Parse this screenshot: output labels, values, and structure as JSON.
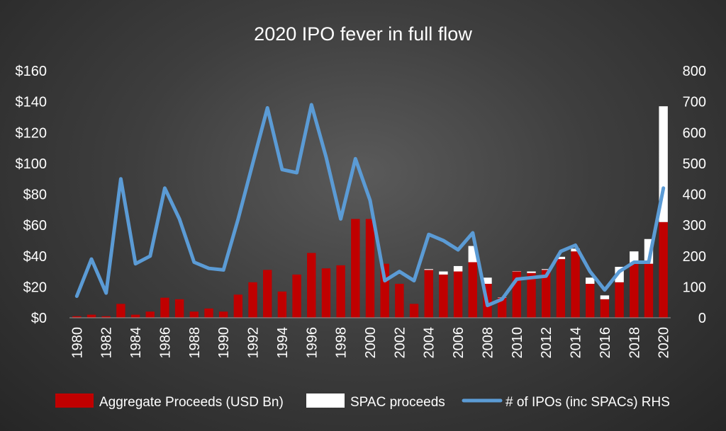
{
  "chart_data": {
    "type": "bar",
    "title": "2020 IPO fever in full flow",
    "years": [
      1980,
      1981,
      1982,
      1983,
      1984,
      1985,
      1986,
      1987,
      1988,
      1989,
      1990,
      1991,
      1992,
      1993,
      1994,
      1995,
      1996,
      1997,
      1998,
      1999,
      2000,
      2001,
      2002,
      2003,
      2004,
      2005,
      2006,
      2007,
      2008,
      2009,
      2010,
      2011,
      2012,
      2013,
      2014,
      2015,
      2016,
      2017,
      2018,
      2019,
      2020
    ],
    "x_tick_labels": [
      "1980",
      "1982",
      "1984",
      "1986",
      "1988",
      "1990",
      "1992",
      "1994",
      "1996",
      "1998",
      "2000",
      "2002",
      "2004",
      "2006",
      "2008",
      "2010",
      "2012",
      "2014",
      "2016",
      "2018",
      "2020"
    ],
    "y_left": {
      "ticks": [
        "$0",
        "$20",
        "$40",
        "$60",
        "$80",
        "$100",
        "$120",
        "$140",
        "$160"
      ],
      "range": [
        0,
        160
      ]
    },
    "y_right": {
      "ticks": [
        "0",
        "100",
        "200",
        "300",
        "400",
        "500",
        "600",
        "700",
        "800"
      ],
      "range": [
        0,
        800
      ]
    },
    "series": [
      {
        "name": "Aggregate Proceeds (USD Bn)",
        "kind": "bar",
        "color": "#c00000",
        "values": [
          1,
          2,
          1,
          9,
          2,
          4,
          13,
          12,
          4,
          6,
          4,
          15,
          23,
          31,
          17,
          28,
          42,
          32,
          34,
          64,
          64,
          35,
          22,
          9,
          31,
          28,
          30,
          36,
          22,
          13,
          30,
          29,
          31,
          38,
          43,
          22,
          12,
          23,
          35,
          35,
          62
        ]
      },
      {
        "name": "SPAC proceeds",
        "kind": "bar-stacked",
        "color": "#ffffff",
        "values": [
          0,
          0,
          0,
          0,
          0,
          0,
          0,
          0,
          0,
          0,
          0,
          0,
          0,
          0,
          0,
          0,
          0,
          0,
          0,
          0,
          0,
          0,
          0,
          0,
          0.5,
          2,
          3.5,
          10.5,
          4,
          0.2,
          0.2,
          1,
          0.5,
          1.5,
          1.8,
          4,
          2.5,
          10,
          8,
          16,
          75
        ]
      },
      {
        "name": "# of IPOs (inc SPACs) RHS",
        "kind": "line",
        "axis": "right",
        "color": "#5b9bd5",
        "values": [
          70,
          190,
          80,
          450,
          175,
          200,
          420,
          320,
          180,
          160,
          155,
          320,
          500,
          680,
          480,
          470,
          690,
          520,
          320,
          515,
          380,
          120,
          150,
          120,
          270,
          250,
          220,
          275,
          40,
          60,
          125,
          130,
          135,
          215,
          235,
          150,
          90,
          150,
          180,
          180,
          420
        ]
      }
    ],
    "legend_position": "bottom",
    "grid": false
  }
}
